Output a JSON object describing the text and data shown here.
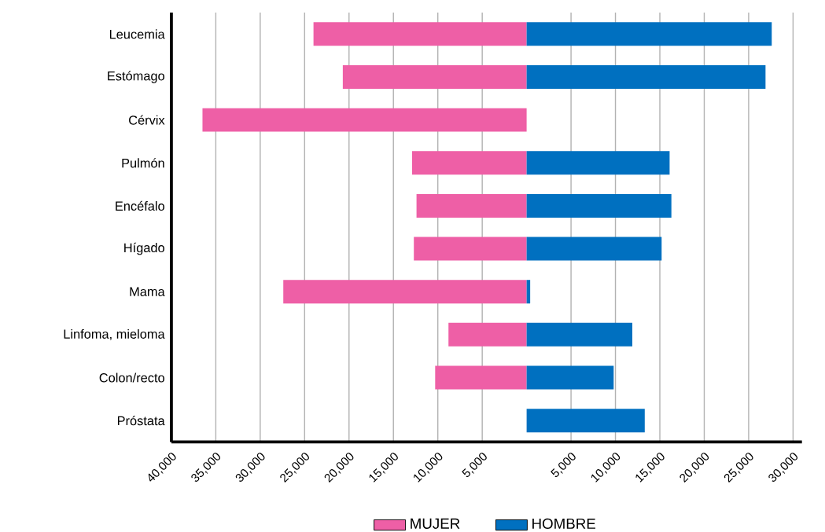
{
  "chart_data": {
    "type": "bar",
    "orientation": "horizontal",
    "categories": [
      "Leucemia",
      "Estómago",
      "Cérvix",
      "Pulmón",
      "Encéfalo",
      "Hígado",
      "Mama",
      "Linfoma, mieloma",
      "Colon/recto",
      "Próstata"
    ],
    "series": [
      {
        "name": "MUJER",
        "color": "#ee5fa6",
        "values": [
          -24000,
          -20700,
          -36500,
          -12900,
          -12400,
          -12700,
          -27400,
          -8800,
          -10300,
          null
        ]
      },
      {
        "name": "HOMBRE",
        "color": "#0070c0",
        "values": [
          27600,
          26900,
          null,
          16100,
          16300,
          15200,
          400,
          11900,
          9800,
          13300
        ]
      }
    ],
    "xlim": [
      -40000,
      31000
    ],
    "xticks": [
      {
        "value": -40000,
        "label": "40,000"
      },
      {
        "value": -35000,
        "label": "35,000"
      },
      {
        "value": -30000,
        "label": "30,000"
      },
      {
        "value": -25000,
        "label": "25,000"
      },
      {
        "value": -20000,
        "label": "20,000"
      },
      {
        "value": -15000,
        "label": "15,000"
      },
      {
        "value": -10000,
        "label": "10,000"
      },
      {
        "value": -5000,
        "label": "5,000"
      },
      {
        "value": 5000,
        "label": "5,000"
      },
      {
        "value": 10000,
        "label": "10,000"
      },
      {
        "value": 15000,
        "label": "15,000"
      },
      {
        "value": 20000,
        "label": "20,000"
      },
      {
        "value": 25000,
        "label": "25,000"
      },
      {
        "value": 30000,
        "label": "30,000"
      }
    ],
    "stacked": true,
    "grid": "x",
    "legend": "bottom"
  }
}
